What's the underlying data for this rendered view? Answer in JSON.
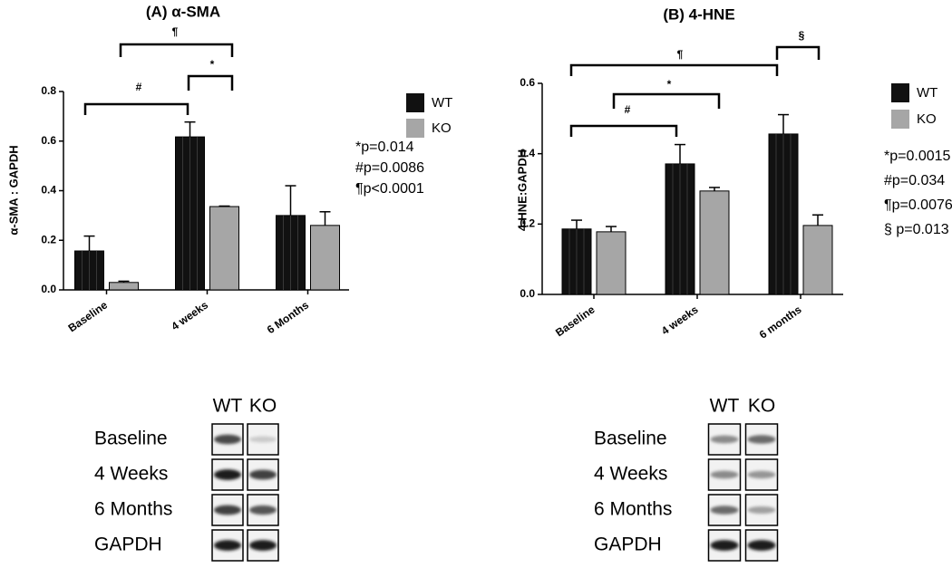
{
  "chart_data": [
    {
      "type": "bar",
      "title": "(A) α-SMA",
      "y_label": "α-SMA : GAPDH",
      "categories": [
        "Baseline",
        "4 weeks",
        "6 Months"
      ],
      "series": [
        {
          "name": "WT",
          "color": "#111111",
          "values": [
            0.157,
            0.617,
            0.3
          ],
          "errors": [
            0.06,
            0.06,
            0.12
          ]
        },
        {
          "name": "KO",
          "color": "#a6a6a6",
          "values": [
            0.03,
            0.336,
            0.26
          ],
          "errors": [
            0.005,
            0.002,
            0.055
          ]
        }
      ],
      "ylim": [
        0,
        0.8
      ],
      "yticks": [
        {
          "value": 0,
          "label": "0.0"
        },
        0.2,
        0.4,
        0.6,
        0.8
      ],
      "brackets": [
        "¶",
        "*",
        "#"
      ],
      "annotations": [
        "*p=0.014",
        "#p=0.0086",
        "¶p<0.0001"
      ],
      "blot": {
        "lanes": [
          "WT",
          "KO"
        ],
        "rows": [
          "Baseline",
          "4 Weeks",
          "6 Months",
          "GAPDH"
        ]
      }
    },
    {
      "type": "bar",
      "title": "(B) 4-HNE",
      "y_label": "4-HNE:GAPDH",
      "categories": [
        "Baseline",
        "4 weeks",
        "6 months"
      ],
      "series": [
        {
          "name": "WT",
          "color": "#111111",
          "values": [
            0.186,
            0.371,
            0.456
          ],
          "errors": [
            0.025,
            0.055,
            0.055
          ]
        },
        {
          "name": "KO",
          "color": "#a6a6a6",
          "values": [
            0.178,
            0.294,
            0.196
          ],
          "errors": [
            0.015,
            0.01,
            0.03
          ]
        }
      ],
      "ylim": [
        0,
        0.6
      ],
      "yticks": [
        {
          "value": 0,
          "label": "0.0"
        },
        0.2,
        0.4,
        0.6
      ],
      "brackets": [
        "¶",
        "*",
        "#",
        "§"
      ],
      "annotations": [
        "*p=0.0015",
        "#p=0.034",
        "¶p=0.0076",
        "§ p=0.013"
      ],
      "blot": {
        "lanes": [
          "WT",
          "KO"
        ],
        "rows": [
          "Baseline",
          "4 Weeks",
          "6 Months",
          "GAPDH"
        ]
      }
    }
  ]
}
